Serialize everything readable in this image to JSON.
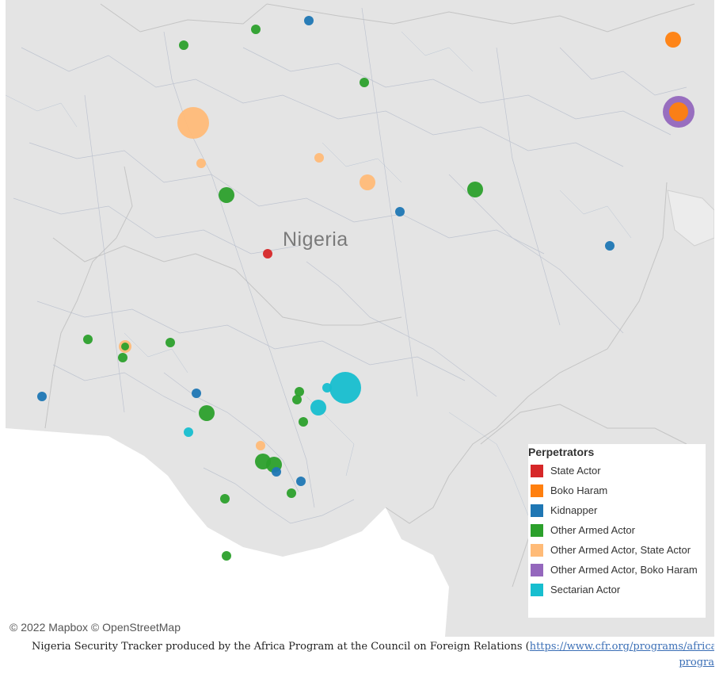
{
  "map": {
    "country_label": "Nigeria",
    "attribution": "© 2022 Mapbox  © OpenStreetMap"
  },
  "legend": {
    "title": "Perpetrators",
    "items": [
      {
        "label": "State Actor",
        "color": "#d62728"
      },
      {
        "label": "Boko Haram",
        "color": "#ff7f0e"
      },
      {
        "label": "Kidnapper",
        "color": "#1f77b4"
      },
      {
        "label": "Other Armed Actor",
        "color": "#2ca02c"
      },
      {
        "label": "Other Armed Actor, State Actor",
        "color": "#ffbb78"
      },
      {
        "label": "Other Armed Actor, Boko Haram",
        "color": "#9467bd"
      },
      {
        "label": "Sectarian Actor",
        "color": "#17becf"
      }
    ]
  },
  "incidents": [
    {
      "type": "Kidnapper",
      "size": "small"
    },
    {
      "type": "Other Armed Actor",
      "size": "small"
    },
    {
      "type": "Other Armed Actor",
      "size": "small"
    },
    {
      "type": "Boko Haram",
      "size": "medium"
    },
    {
      "type": "Other Armed Actor, Boko Haram",
      "size": "large"
    },
    {
      "type": "Boko Haram",
      "size": "medium"
    },
    {
      "type": "Other Armed Actor",
      "size": "small"
    },
    {
      "type": "Other Armed Actor, State Actor",
      "size": "large"
    },
    {
      "type": "Other Armed Actor, State Actor",
      "size": "small"
    },
    {
      "type": "Other Armed Actor, State Actor",
      "size": "small"
    },
    {
      "type": "Other Armed Actor, State Actor",
      "size": "medium"
    },
    {
      "type": "Other Armed Actor",
      "size": "medium"
    },
    {
      "type": "Other Armed Actor",
      "size": "medium"
    },
    {
      "type": "Kidnapper",
      "size": "small"
    },
    {
      "type": "Kidnapper",
      "size": "small"
    },
    {
      "type": "State Actor",
      "size": "small"
    },
    {
      "type": "Other Armed Actor",
      "size": "small"
    },
    {
      "type": "Other Armed Actor, State Actor",
      "size": "small"
    },
    {
      "type": "Other Armed Actor",
      "size": "small"
    },
    {
      "type": "Other Armed Actor",
      "size": "small"
    },
    {
      "type": "Other Armed Actor",
      "size": "small"
    },
    {
      "type": "Kidnapper",
      "size": "small"
    },
    {
      "type": "Kidnapper",
      "size": "small"
    },
    {
      "type": "Sectarian Actor",
      "size": "large"
    },
    {
      "type": "Sectarian Actor",
      "size": "small"
    },
    {
      "type": "Sectarian Actor",
      "size": "medium"
    },
    {
      "type": "Other Armed Actor",
      "size": "small"
    },
    {
      "type": "Other Armed Actor",
      "size": "small"
    },
    {
      "type": "Other Armed Actor",
      "size": "small"
    },
    {
      "type": "Other Armed Actor",
      "size": "medium"
    },
    {
      "type": "Sectarian Actor",
      "size": "small"
    },
    {
      "type": "Other Armed Actor, State Actor",
      "size": "small"
    },
    {
      "type": "Other Armed Actor",
      "size": "medium"
    },
    {
      "type": "Other Armed Actor",
      "size": "medium"
    },
    {
      "type": "Kidnapper",
      "size": "small"
    },
    {
      "type": "Kidnapper",
      "size": "small"
    },
    {
      "type": "Other Armed Actor",
      "size": "small"
    },
    {
      "type": "Other Armed Actor",
      "size": "small"
    },
    {
      "type": "Other Armed Actor",
      "size": "small"
    }
  ],
  "footer": {
    "text": "Nigeria Security Tracker produced by the Africa Program at the Council on Foreign Relations (",
    "link": "https://www.cfr.org/programs/africa-program",
    "link_line2": "progra"
  }
}
